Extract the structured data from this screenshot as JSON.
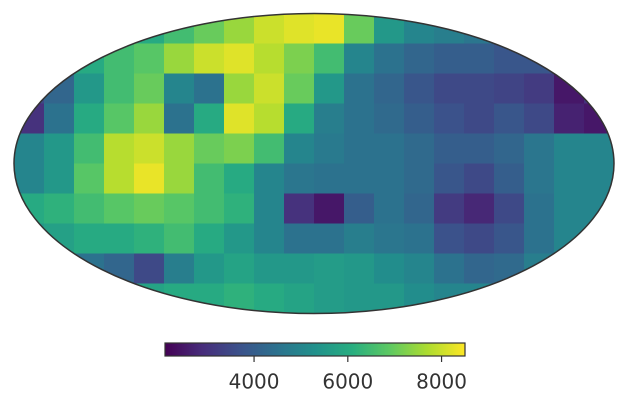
{
  "chart_data": {
    "type": "mollweide_map",
    "colormap": "viridis",
    "values": [
      [
        5000,
        5000,
        5000,
        5500,
        6000,
        6500,
        7000,
        7500,
        8000,
        8200,
        8300,
        7000,
        5500,
        5000,
        4800,
        4600,
        4500,
        4500,
        4500,
        4500
      ],
      [
        5000,
        5500,
        6000,
        6500,
        6800,
        7500,
        8000,
        8200,
        7800,
        7200,
        6500,
        5000,
        4500,
        4200,
        4000,
        4000,
        3800,
        3800,
        4000,
        4500
      ],
      [
        3500,
        4200,
        5500,
        6500,
        7000,
        5000,
        4500,
        7500,
        8000,
        7000,
        5500,
        4500,
        4200,
        3800,
        3500,
        3500,
        3400,
        3200,
        2500,
        3000
      ],
      [
        3000,
        4500,
        6000,
        6800,
        7500,
        4500,
        6000,
        8200,
        7800,
        6000,
        4800,
        4500,
        4300,
        4000,
        3700,
        3500,
        3800,
        3500,
        2700,
        2500
      ],
      [
        5000,
        5500,
        6500,
        7800,
        8000,
        7500,
        7000,
        7200,
        6500,
        5000,
        4700,
        4500,
        4500,
        4300,
        4000,
        4000,
        4200,
        4600,
        5000,
        5000
      ],
      [
        5000,
        5500,
        6800,
        7800,
        8300,
        7500,
        6500,
        6000,
        5000,
        4600,
        4500,
        4500,
        4500,
        4300,
        3800,
        3500,
        4000,
        4600,
        5000,
        5000
      ],
      [
        6000,
        6200,
        6500,
        6800,
        7000,
        6800,
        6500,
        6200,
        5000,
        3000,
        2500,
        4000,
        4500,
        4200,
        3200,
        2800,
        3500,
        4500,
        5000,
        5000
      ],
      [
        5500,
        5700,
        6000,
        6000,
        6200,
        6500,
        6000,
        5500,
        5000,
        4500,
        4500,
        4800,
        4600,
        4500,
        3700,
        3500,
        3800,
        4500,
        5000,
        5000
      ],
      [
        4800,
        4800,
        4500,
        4200,
        3500,
        4800,
        5500,
        5800,
        5500,
        5500,
        5600,
        5500,
        5200,
        5000,
        4500,
        4200,
        4300,
        4800,
        5000,
        5000
      ],
      [
        5000,
        5000,
        5000,
        5500,
        5800,
        6000,
        6000,
        6200,
        6000,
        5800,
        5600,
        5500,
        5500,
        5200,
        5000,
        5000,
        5000,
        5000,
        5000,
        5000
      ]
    ],
    "clim": [
      2100,
      8500
    ],
    "colorbar_ticks": [
      4000,
      6000,
      8000
    ]
  }
}
